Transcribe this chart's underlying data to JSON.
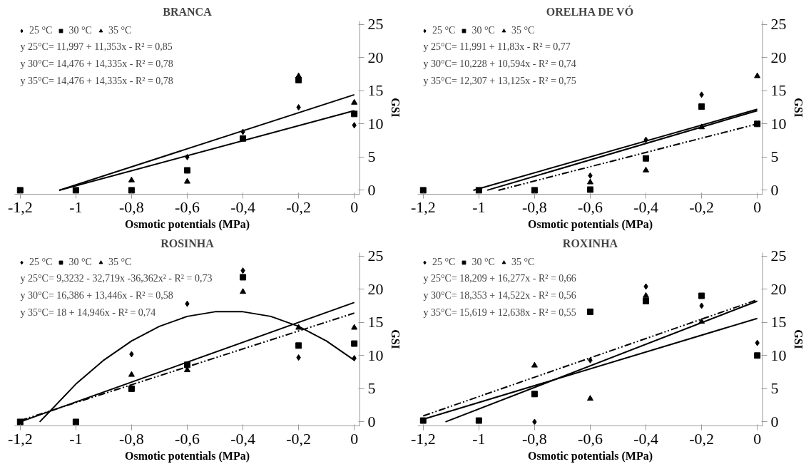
{
  "chart_data": [
    {
      "type": "scatter",
      "title": "BRANCA",
      "xlabel": "Osmotic potentials (MPa)",
      "ylabel": "GSI",
      "legend": "top left",
      "x": [
        -1.2,
        -1,
        -0.8,
        -0.6,
        -0.4,
        -0.2,
        0
      ],
      "xlim": [
        -1.22,
        0.02
      ],
      "ylim": [
        -0.6,
        25.5
      ],
      "xticks": [
        {
          "value": -1.2,
          "label": "-1,2"
        },
        -1,
        {
          "value": -0.8,
          "label": "-0,8"
        },
        {
          "value": -0.6,
          "label": "-0,6"
        },
        {
          "value": -0.4,
          "label": "-0,4"
        },
        {
          "value": -0.2,
          "label": "-0,2"
        },
        0
      ],
      "yticks": [
        0,
        5,
        10,
        15,
        20,
        25
      ],
      "annotations": [
        "y 25°C=  11,997  + 11,353x  - R² = 0,85",
        "y 30°C=  14,476  + 14,335x  - R² = 0,78",
        "y 35°C=  14,476  + 14,335x  - R² = 0,78"
      ],
      "series": [
        {
          "name": "25 °C",
          "color": "#000000",
          "marker": "diamond",
          "values": [
            null,
            null,
            null,
            5,
            8.8,
            12.5,
            9.8
          ]
        },
        {
          "name": "30 °C",
          "color": "#000000",
          "marker": "square",
          "values": [
            0,
            0,
            0,
            3,
            7.8,
            16.6,
            11.5
          ]
        },
        {
          "name": "35 °C",
          "color": "#000000",
          "marker": "triangle",
          "values": [
            null,
            null,
            1.5,
            1.3,
            null,
            17.2,
            13.2
          ]
        },
        {
          "type": "line",
          "color": "#000000",
          "line_style": "solid",
          "x": [
            -1.06,
            0
          ],
          "values": [
            0,
            14.4
          ]
        },
        {
          "type": "line",
          "color": "#000000",
          "line_style": "solid",
          "x": [
            -1.06,
            0
          ],
          "values": [
            0,
            12
          ]
        }
      ]
    },
    {
      "type": "scatter",
      "title": "ORELHA DE VÓ",
      "xlabel": "Osmotic potentials (MPa)",
      "ylabel": "GSI",
      "legend": "top left",
      "x": [
        -1.2,
        -1,
        -0.8,
        -0.6,
        -0.4,
        -0.2,
        0
      ],
      "xlim": [
        -1.22,
        0.02
      ],
      "ylim": [
        -0.6,
        25.5
      ],
      "xticks": [
        {
          "value": -1.2,
          "label": "-1,2"
        },
        -1,
        {
          "value": -0.8,
          "label": "-0,8"
        },
        {
          "value": -0.6,
          "label": "-0,6"
        },
        {
          "value": -0.4,
          "label": "-0,4"
        },
        {
          "value": -0.2,
          "label": "-0,2"
        },
        0
      ],
      "yticks": [
        0,
        5,
        10,
        15,
        20,
        25
      ],
      "annotations": [
        "y 25°C=  11,991  + 11,83x  - R² = 0,77",
        "y 30°C=  10,228  + 10,594x  - R² = 0,74",
        "y 35°C=  12,307  + 13,125x  - R² = 0,75"
      ],
      "series": [
        {
          "name": "25 °C",
          "color": "#000000",
          "marker": "diamond",
          "values": [
            null,
            null,
            null,
            2.2,
            7.6,
            14.4,
            null
          ]
        },
        {
          "name": "30 °C",
          "color": "#000000",
          "marker": "square",
          "values": [
            0,
            0,
            0,
            0.1,
            4.8,
            12.6,
            10
          ]
        },
        {
          "name": "35 °C",
          "color": "#000000",
          "marker": "triangle",
          "values": [
            null,
            null,
            null,
            1.2,
            3,
            9.5,
            17.2
          ]
        },
        {
          "type": "line",
          "color": "#000000",
          "line_style": "solid",
          "x": [
            -1.02,
            0
          ],
          "values": [
            0,
            12.2
          ]
        },
        {
          "type": "line",
          "color": "#000000",
          "line_style": "solid",
          "x": [
            -0.97,
            0
          ],
          "values": [
            0,
            12
          ]
        },
        {
          "type": "line",
          "color": "#000000",
          "line_style": "dashed",
          "x": [
            -0.93,
            0
          ],
          "values": [
            0,
            10
          ]
        }
      ]
    },
    {
      "type": "scatter",
      "title": "ROSINHA",
      "xlabel": "Osmotic potentials (MPa)",
      "ylabel": "GSI",
      "legend": "top left",
      "x": [
        -1.2,
        -1,
        -0.8,
        -0.6,
        -0.4,
        -0.2,
        0
      ],
      "xlim": [
        -1.22,
        0.02
      ],
      "ylim": [
        -0.6,
        25.5
      ],
      "xticks": [
        {
          "value": -1.2,
          "label": "-1,2"
        },
        -1,
        {
          "value": -0.8,
          "label": "-0,8"
        },
        {
          "value": -0.6,
          "label": "-0,6"
        },
        {
          "value": -0.4,
          "label": "-0,4"
        },
        {
          "value": -0.2,
          "label": "-0,2"
        },
        0
      ],
      "yticks": [
        0,
        5,
        10,
        15,
        20,
        25
      ],
      "annotations": [
        "y 25°C=   9,3232  - 32,719x  -36,362x²  - R² = 0,73",
        "y 30°C=  16,386  + 13,446x  - R² = 0,58",
        "y 35°C=  18  + 14,946x  - R² = 0,74"
      ],
      "series": [
        {
          "name": "25 °C",
          "color": "#000000",
          "marker": "diamond",
          "values": [
            null,
            null,
            10.2,
            17.8,
            22.8,
            9.7,
            9.6
          ]
        },
        {
          "name": "30 °C",
          "color": "#000000",
          "marker": "square",
          "values": [
            0,
            0,
            5,
            8.6,
            21.8,
            11.5,
            11.8
          ]
        },
        {
          "name": "35 °C",
          "color": "#000000",
          "marker": "triangle",
          "values": [
            null,
            null,
            7.1,
            7.8,
            19.6,
            14.2,
            14.2
          ]
        },
        {
          "type": "line",
          "color": "#000000",
          "line_style": "solid",
          "x": [
            -1.13,
            -1.1,
            -1.0,
            -0.9,
            -0.8,
            -0.7,
            -0.6,
            -0.5,
            -0.4,
            -0.3,
            -0.2,
            -0.1,
            0
          ],
          "values": [
            0,
            1.3,
            5.7,
            9.3,
            12.2,
            14.4,
            15.9,
            16.6,
            16.6,
            15.9,
            14.4,
            12.2,
            9.3
          ]
        },
        {
          "type": "line",
          "color": "#000000",
          "line_style": "solid",
          "x": [
            -1.2,
            0
          ],
          "values": [
            0,
            18
          ]
        },
        {
          "type": "line",
          "color": "#000000",
          "line_style": "dashed",
          "x": [
            -1.2,
            0
          ],
          "values": [
            0.2,
            16.4
          ]
        }
      ]
    },
    {
      "type": "scatter",
      "title": "ROXINHA",
      "xlabel": "Osmotic potentials (MPa)",
      "ylabel": "GSI",
      "legend": "top left",
      "x": [
        -1.2,
        -1,
        -0.8,
        -0.6,
        -0.4,
        -0.2,
        0
      ],
      "xlim": [
        -1.22,
        0.02
      ],
      "ylim": [
        -0.6,
        25.5
      ],
      "xticks": [
        {
          "value": -1.2,
          "label": "-1,2"
        },
        -1,
        {
          "value": -0.8,
          "label": "-0,8"
        },
        {
          "value": -0.6,
          "label": "-0,6"
        },
        {
          "value": -0.4,
          "label": "-0,4"
        },
        {
          "value": -0.2,
          "label": "-0,2"
        },
        0
      ],
      "yticks": [
        0,
        5,
        10,
        15,
        20,
        25
      ],
      "annotations": [
        "y 25°C=  18,209  + 16,277x  - R² = 0,66",
        "y 30°C=  18,353  + 14,522x  - R² = 0,56",
        "y 35°C=  15,619  + 12,638x  - R² = 0,55"
      ],
      "series": [
        {
          "name": "25 °C",
          "color": "#000000",
          "marker": "diamond",
          "values": [
            null,
            null,
            0,
            9.3,
            20.4,
            17.5,
            11.9
          ]
        },
        {
          "name": "30 °C",
          "color": "#000000",
          "marker": "square",
          "values": [
            0.2,
            0.2,
            4.2,
            16.6,
            18.2,
            19,
            10
          ]
        },
        {
          "name": "35 °C",
          "color": "#000000",
          "marker": "triangle",
          "values": [
            null,
            null,
            8.5,
            3.5,
            19,
            15.1,
            null
          ]
        },
        {
          "type": "line",
          "color": "#000000",
          "line_style": "solid",
          "x": [
            -1.12,
            0
          ],
          "values": [
            0,
            18.2
          ]
        },
        {
          "type": "line",
          "color": "#000000",
          "line_style": "solid",
          "x": [
            -1.2,
            0
          ],
          "values": [
            0.4,
            15.6
          ]
        },
        {
          "type": "line",
          "color": "#000000",
          "line_style": "dashed",
          "x": [
            -1.2,
            0
          ],
          "values": [
            0.9,
            18.4
          ]
        }
      ]
    }
  ]
}
